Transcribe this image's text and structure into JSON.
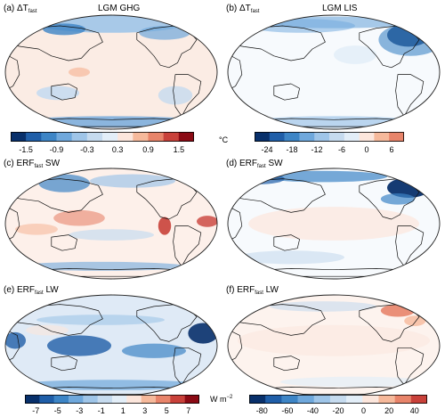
{
  "panels": [
    {
      "id": "a",
      "label": "(a) ΔT",
      "sub": "fast",
      "suffix": "",
      "title": "LGM GHG",
      "style": "ghg_t"
    },
    {
      "id": "b",
      "label": "(b) ΔT",
      "sub": "fast",
      "suffix": "",
      "title": "LGM LIS",
      "style": "lis_t"
    },
    {
      "id": "c",
      "label": "(c) ERF",
      "sub": "fast",
      "suffix": " SW",
      "title": "",
      "style": "ghg_sw"
    },
    {
      "id": "d",
      "label": "(d) ERF",
      "sub": "fast",
      "suffix": " SW",
      "title": "",
      "style": "lis_sw"
    },
    {
      "id": "e",
      "label": "(e) ERF",
      "sub": "fast",
      "suffix": " LW",
      "title": "",
      "style": "ghg_lw"
    },
    {
      "id": "f",
      "label": "(f) ERF",
      "sub": "fast",
      "suffix": " LW",
      "title": "",
      "style": "lis_lw"
    }
  ],
  "colorbars": {
    "temp_ghg": {
      "ticks": [
        "-1.5",
        "-0.9",
        "-0.3",
        "0.3",
        "0.9",
        "1.5"
      ],
      "colors": [
        "#08306b",
        "#1f5ea8",
        "#3d85c6",
        "#6fa8dc",
        "#9fc5e8",
        "#c6dbef",
        "#e3eef8",
        "#fce6dc",
        "#f6b99b",
        "#e8846a",
        "#c9413a",
        "#8b0a14"
      ]
    },
    "temp_lis": {
      "ticks": [
        "-24",
        "-18",
        "-12",
        "-6",
        "0",
        "6"
      ],
      "colors": [
        "#08306b",
        "#1f5ea8",
        "#3d85c6",
        "#6fa8dc",
        "#9fc5e8",
        "#c6dbef",
        "#e3eef8",
        "#fce6dc",
        "#f6b99b",
        "#e8846a"
      ]
    },
    "temp_unit": "°C",
    "flux_ghg": {
      "ticks": [
        "-7",
        "-5",
        "-3",
        "-1",
        "1",
        "3",
        "5",
        "7"
      ],
      "colors": [
        "#08306b",
        "#1f5ea8",
        "#3d85c6",
        "#6fa8dc",
        "#9fc5e8",
        "#c6dbef",
        "#e3eef8",
        "#fce6dc",
        "#f6b99b",
        "#e8846a",
        "#c9413a",
        "#8b0a14"
      ]
    },
    "flux_lis": {
      "ticks": [
        "-80",
        "-60",
        "-40",
        "-20",
        "0",
        "20",
        "40"
      ],
      "colors": [
        "#08306b",
        "#1f5ea8",
        "#3d85c6",
        "#6fa8dc",
        "#9fc5e8",
        "#c6dbef",
        "#e3eef8",
        "#fce6dc",
        "#f6b99b",
        "#e8846a",
        "#c9413a"
      ]
    },
    "flux_unit": "W m",
    "flux_unit_sup": "−2"
  },
  "colors": {
    "ocean_bg": "#fbeee8",
    "coast": "#111111",
    "border": "#222222"
  }
}
